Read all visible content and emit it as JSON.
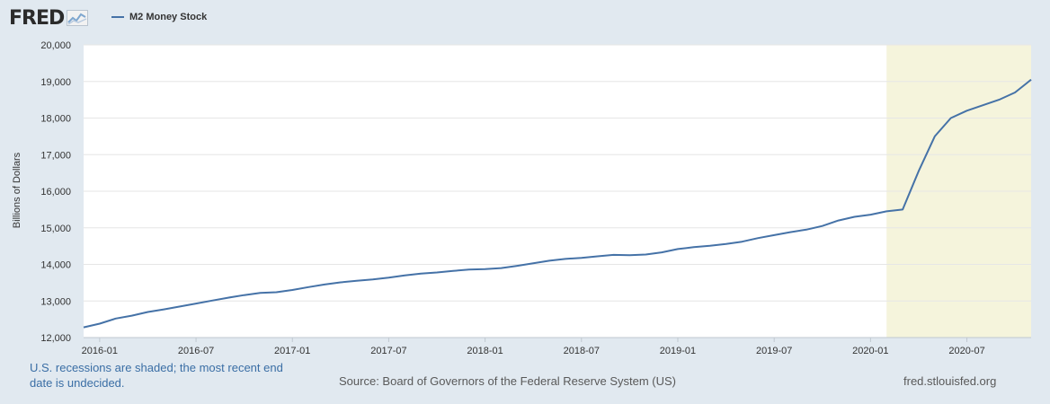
{
  "header": {
    "logo_text": "FRED"
  },
  "chart_data": {
    "type": "line",
    "ylabel": "Billions of Dollars",
    "ylim": [
      12000,
      20000
    ],
    "xlim": [
      "2015-12",
      "2020-11"
    ],
    "y_ticks": [
      "12,000",
      "13,000",
      "14,000",
      "15,000",
      "16,000",
      "17,000",
      "18,000",
      "19,000",
      "20,000"
    ],
    "x_ticks": [
      "2016-01",
      "2016-07",
      "2017-01",
      "2017-07",
      "2018-01",
      "2018-07",
      "2019-01",
      "2019-07",
      "2020-01",
      "2020-07"
    ],
    "grid": true,
    "legend_position": "top-left",
    "series": [
      {
        "name": "M2 Money Stock",
        "color": "#4572a7",
        "x": [
          "2015-12",
          "2016-01",
          "2016-02",
          "2016-03",
          "2016-04",
          "2016-05",
          "2016-06",
          "2016-07",
          "2016-08",
          "2016-09",
          "2016-10",
          "2016-11",
          "2016-12",
          "2017-01",
          "2017-02",
          "2017-03",
          "2017-04",
          "2017-05",
          "2017-06",
          "2017-07",
          "2017-08",
          "2017-09",
          "2017-10",
          "2017-11",
          "2017-12",
          "2018-01",
          "2018-02",
          "2018-03",
          "2018-04",
          "2018-05",
          "2018-06",
          "2018-07",
          "2018-08",
          "2018-09",
          "2018-10",
          "2018-11",
          "2018-12",
          "2019-01",
          "2019-02",
          "2019-03",
          "2019-04",
          "2019-05",
          "2019-06",
          "2019-07",
          "2019-08",
          "2019-09",
          "2019-10",
          "2019-11",
          "2019-12",
          "2020-01",
          "2020-02",
          "2020-03",
          "2020-04",
          "2020-05",
          "2020-06",
          "2020-07",
          "2020-08",
          "2020-09",
          "2020-10",
          "2020-11"
        ],
        "values": [
          12280,
          12380,
          12520,
          12600,
          12700,
          12770,
          12850,
          12930,
          13010,
          13090,
          13160,
          13220,
          13240,
          13300,
          13380,
          13450,
          13510,
          13550,
          13590,
          13640,
          13700,
          13750,
          13780,
          13820,
          13860,
          13870,
          13900,
          13960,
          14030,
          14100,
          14150,
          14180,
          14220,
          14260,
          14250,
          14270,
          14330,
          14420,
          14470,
          14510,
          14560,
          14620,
          14720,
          14800,
          14880,
          14950,
          15050,
          15200,
          15300,
          15360,
          15450,
          15500,
          16550,
          17500,
          18000,
          18200,
          18350,
          18500,
          18700,
          19050
        ]
      }
    ],
    "recessions": [
      {
        "start": "2020-02",
        "end": "2020-11"
      }
    ]
  },
  "footer": {
    "note": "U.S. recessions are shaded; the most recent end date is undecided.",
    "source": "Source: Board of Governors of the Federal Reserve System (US)",
    "url": "fred.stlouisfed.org"
  },
  "colors": {
    "background": "#e1e9f0",
    "plot_background": "#ffffff",
    "recession_shade": "#f5f4dc",
    "gridline": "#e6e6e6",
    "link_text": "#3a6ea5"
  }
}
